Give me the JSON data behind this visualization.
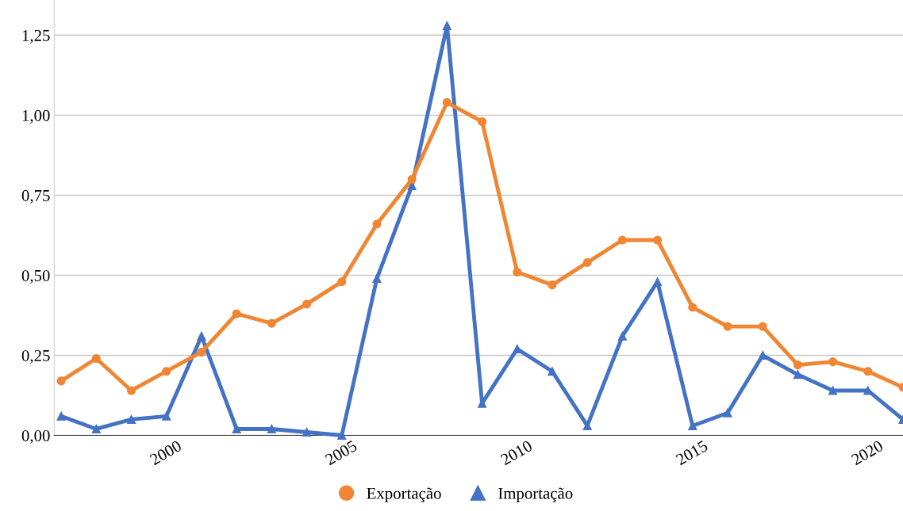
{
  "chart_data": {
    "type": "line",
    "x": [
      1997,
      1998,
      1999,
      2000,
      2001,
      2002,
      2003,
      2004,
      2005,
      2006,
      2007,
      2008,
      2009,
      2010,
      2011,
      2012,
      2013,
      2014,
      2015,
      2016,
      2017,
      2018,
      2019,
      2020,
      2021
    ],
    "series": [
      {
        "name": "Exportação",
        "color": "#ef8633",
        "marker": "circle",
        "values": [
          0.17,
          0.24,
          0.14,
          0.2,
          0.26,
          0.38,
          0.35,
          0.41,
          0.48,
          0.66,
          0.8,
          1.04,
          0.98,
          0.51,
          0.47,
          0.54,
          0.61,
          0.61,
          0.4,
          0.34,
          0.34,
          0.22,
          0.23,
          0.2,
          0.15
        ]
      },
      {
        "name": "Importação",
        "color": "#4472c4",
        "marker": "triangle",
        "values": [
          0.06,
          0.02,
          0.05,
          0.06,
          0.31,
          0.02,
          0.02,
          0.01,
          0.0,
          0.49,
          0.78,
          1.28,
          0.1,
          0.27,
          0.2,
          0.03,
          0.31,
          0.48,
          0.03,
          0.07,
          0.25,
          0.19,
          0.14,
          0.14,
          0.05
        ]
      }
    ],
    "xlim": [
      1996.8,
      2021
    ],
    "xticks": [
      2000,
      2005,
      2010,
      2015,
      2020
    ],
    "ylim": [
      0,
      1.36
    ],
    "yticks": [
      {
        "value": 0,
        "label": "0,00"
      },
      {
        "value": 0.25,
        "label": "0,25"
      },
      {
        "value": 0.5,
        "label": "0,50"
      },
      {
        "value": 0.75,
        "label": "0,75"
      },
      {
        "value": 1,
        "label": "1,00"
      },
      {
        "value": 1.25,
        "label": "1,25"
      }
    ],
    "grid": "y",
    "legend": "bottom",
    "line_style": "solid"
  }
}
